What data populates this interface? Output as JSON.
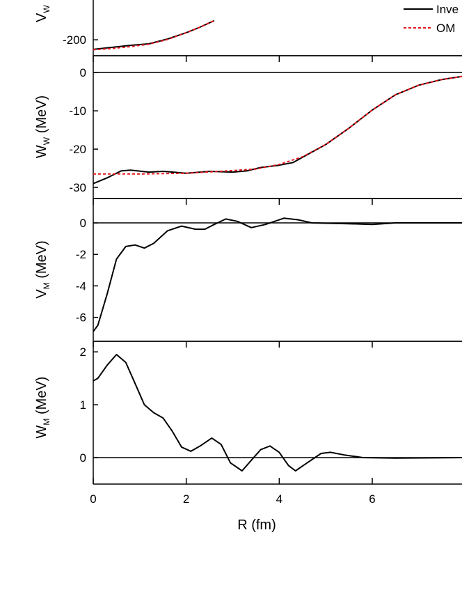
{
  "chart_data": [
    {
      "type": "line",
      "y_label": "V",
      "y_label_sub": "W",
      "xlim": [
        0,
        7.93
      ],
      "xticks": [
        0,
        2,
        4,
        6
      ],
      "ylim": [
        -220,
        -150
      ],
      "yticks": [
        -200
      ],
      "legend": "upper right",
      "series": [
        {
          "name": "Inve",
          "color": "#000000",
          "dash": false,
          "x": [
            0,
            0.4,
            0.8,
            1.2,
            1.6,
            2.0,
            2.3,
            2.6
          ],
          "values": [
            -212,
            -209.5,
            -207,
            -205,
            -199,
            -191,
            -184,
            -176
          ]
        },
        {
          "name": "OM",
          "color": "#e8141b",
          "dash": true,
          "x": [
            0,
            0.4,
            0.8,
            1.2,
            1.6,
            2.0,
            2.3,
            2.6
          ],
          "values": [
            -212.5,
            -211,
            -208.5,
            -205.5,
            -199.5,
            -191,
            -184,
            -176
          ]
        }
      ]
    },
    {
      "type": "line",
      "y_label": "W",
      "y_label_sub": "W",
      "y_label_unit": "(MeV)",
      "xlim": [
        0,
        7.93
      ],
      "xticks": [
        0,
        2,
        4,
        6
      ],
      "ylim": [
        -32.9,
        4.4
      ],
      "yticks": [
        -30,
        -20,
        -10,
        0
      ],
      "zero_line": true,
      "series": [
        {
          "color": "#000000",
          "dash": false,
          "x": [
            0,
            0.3,
            0.6,
            0.8,
            1.2,
            1.5,
            2,
            2.5,
            3,
            3.3,
            3.6,
            4,
            4.3,
            4.7,
            5,
            5.5,
            6,
            6.5,
            7,
            7.5,
            7.93
          ],
          "values": [
            -29,
            -27.5,
            -25.7,
            -25.5,
            -26,
            -25.8,
            -26.3,
            -25.8,
            -26,
            -25.7,
            -24.8,
            -24.2,
            -23.5,
            -20.8,
            -18.8,
            -14.5,
            -9.8,
            -5.8,
            -3.3,
            -1.8,
            -1
          ]
        },
        {
          "color": "#e8141b",
          "dash": true,
          "x": [
            0,
            1,
            2,
            3,
            3.5,
            4,
            4.5,
            5,
            5.5,
            6,
            6.5,
            7,
            7.5,
            7.93
          ],
          "values": [
            -26.5,
            -26.5,
            -26.3,
            -25.6,
            -25.2,
            -24,
            -22,
            -18.8,
            -14.5,
            -9.8,
            -5.8,
            -3.3,
            -1.8,
            -1
          ]
        }
      ]
    },
    {
      "type": "line",
      "y_label": "V",
      "y_label_sub": "M",
      "y_label_unit": "(MeV)",
      "xlim": [
        0,
        7.93
      ],
      "xticks": [
        0,
        2,
        4,
        6
      ],
      "ylim": [
        -7.52,
        1.55
      ],
      "yticks": [
        -6,
        -4,
        -2,
        0
      ],
      "zero_line": true,
      "series": [
        {
          "color": "#000000",
          "dash": false,
          "x": [
            0,
            0.1,
            0.3,
            0.5,
            0.7,
            0.9,
            1.1,
            1.3,
            1.6,
            1.9,
            2.2,
            2.4,
            2.6,
            2.85,
            3.1,
            3.4,
            3.7,
            4.1,
            4.4,
            4.7,
            5.5,
            6,
            6.5,
            7.93
          ],
          "values": [
            -6.9,
            -6.5,
            -4.5,
            -2.3,
            -1.5,
            -1.4,
            -1.6,
            -1.3,
            -0.5,
            -0.2,
            -0.4,
            -0.4,
            -0.1,
            0.25,
            0.1,
            -0.3,
            -0.1,
            0.3,
            0.2,
            0,
            -0.05,
            -0.1,
            0,
            0
          ]
        }
      ]
    },
    {
      "type": "line",
      "y_label": "W",
      "y_label_sub": "M",
      "y_label_unit": "(MeV)",
      "x_label": "R (fm)",
      "xlim": [
        0,
        7.93
      ],
      "xticks": [
        0,
        2,
        4,
        6
      ],
      "ylim": [
        -0.5,
        2.2
      ],
      "yticks": [
        0,
        1,
        2
      ],
      "zero_line": true,
      "series": [
        {
          "color": "#000000",
          "dash": false,
          "x": [
            0,
            0.1,
            0.3,
            0.5,
            0.7,
            0.9,
            1.1,
            1.3,
            1.5,
            1.7,
            1.9,
            2.1,
            2.3,
            2.55,
            2.75,
            2.95,
            3.2,
            3.4,
            3.6,
            3.8,
            4.0,
            4.2,
            4.35,
            4.6,
            4.9,
            5.1,
            5.4,
            5.8,
            6.5,
            7.93
          ],
          "values": [
            1.45,
            1.5,
            1.75,
            1.95,
            1.8,
            1.4,
            1.0,
            0.85,
            0.75,
            0.5,
            0.2,
            0.12,
            0.22,
            0.37,
            0.25,
            -0.1,
            -0.25,
            -0.05,
            0.15,
            0.22,
            0.1,
            -0.15,
            -0.25,
            -0.1,
            0.08,
            0.1,
            0.05,
            0,
            -0.01,
            0
          ]
        }
      ]
    }
  ]
}
